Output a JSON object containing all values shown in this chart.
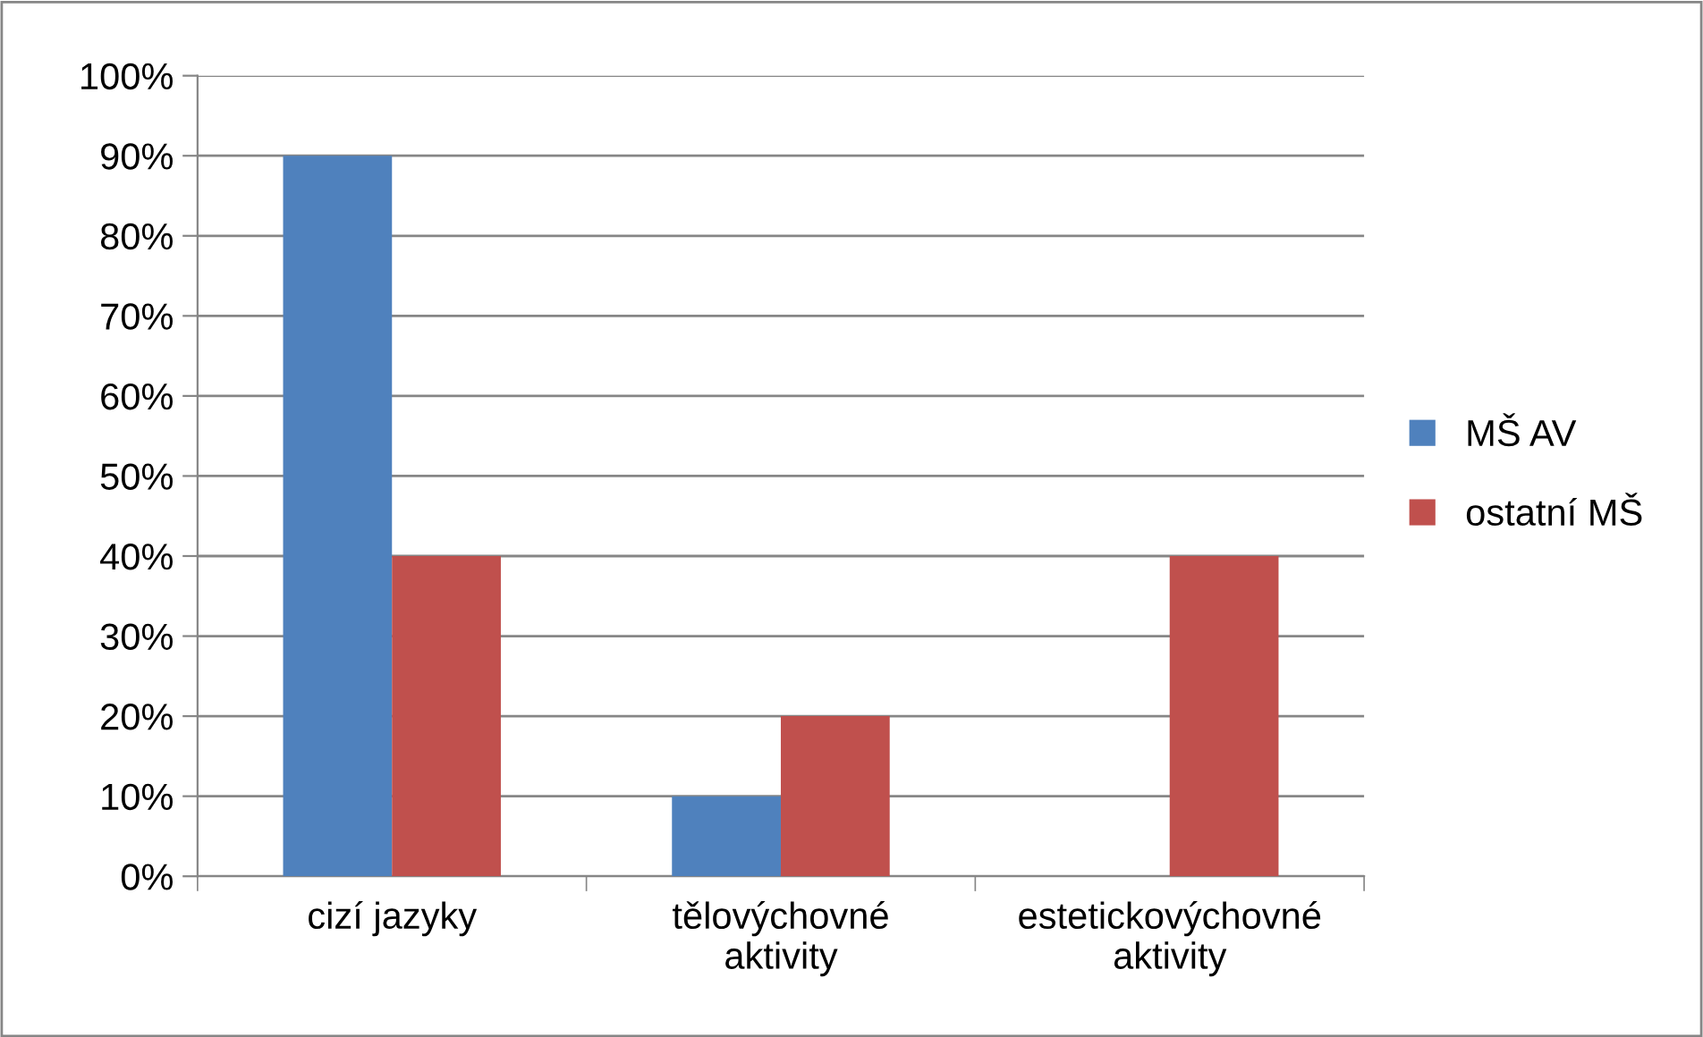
{
  "chart_data": {
    "type": "bar",
    "categories": [
      "cizí jazyky",
      "tělovýchovné\naktivity",
      "estetickovýchovné\naktivity"
    ],
    "series": [
      {
        "name": "MŠ AV",
        "color": "#4f81bd",
        "values": [
          90,
          10,
          0
        ]
      },
      {
        "name": "ostatní MŠ",
        "color": "#c0504d",
        "values": [
          40,
          20,
          40
        ]
      }
    ],
    "ylim": [
      0,
      100
    ],
    "yticks": [
      {
        "value": 0,
        "label": "0%"
      },
      {
        "value": 10,
        "label": "10%"
      },
      {
        "value": 20,
        "label": "20%"
      },
      {
        "value": 30,
        "label": "30%"
      },
      {
        "value": 40,
        "label": "40%"
      },
      {
        "value": 50,
        "label": "50%"
      },
      {
        "value": 60,
        "label": "60%"
      },
      {
        "value": 70,
        "label": "70%"
      },
      {
        "value": 80,
        "label": "80%"
      },
      {
        "value": 90,
        "label": "90%"
      },
      {
        "value": 100,
        "label": "100%"
      }
    ],
    "grid": "y",
    "legend": "right"
  }
}
